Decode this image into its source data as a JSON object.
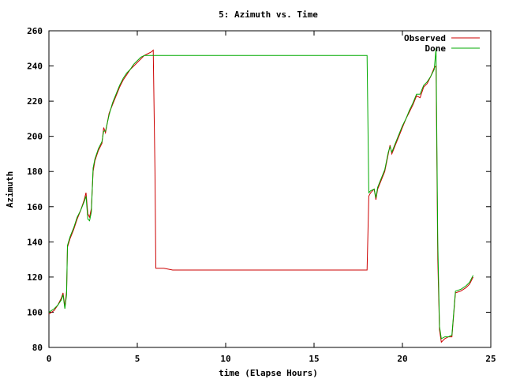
{
  "chart_data": {
    "type": "line",
    "title": "5: Azimuth vs. Time",
    "xlabel": "time (Elapse Hours)",
    "ylabel": "Azimuth",
    "xlim": [
      0,
      25
    ],
    "ylim": [
      80,
      260
    ],
    "xticks": [
      "0",
      "5",
      "10",
      "15",
      "20",
      "25"
    ],
    "yticks": [
      "80",
      "100",
      "120",
      "140",
      "160",
      "180",
      "200",
      "220",
      "240",
      "260"
    ],
    "grid": false,
    "legend_position": "top-right",
    "series": [
      {
        "name": "Observed",
        "color": "#cc0000",
        "points": [
          [
            0.0,
            99
          ],
          [
            0.3,
            101
          ],
          [
            0.5,
            104
          ],
          [
            0.7,
            108
          ],
          [
            0.8,
            111
          ],
          [
            0.9,
            103
          ],
          [
            1.0,
            112
          ],
          [
            1.05,
            137
          ],
          [
            1.2,
            142
          ],
          [
            1.4,
            147
          ],
          [
            1.6,
            153
          ],
          [
            1.8,
            158
          ],
          [
            2.0,
            164
          ],
          [
            2.1,
            168
          ],
          [
            2.2,
            156
          ],
          [
            2.3,
            154
          ],
          [
            2.4,
            159
          ],
          [
            2.5,
            180
          ],
          [
            2.6,
            186
          ],
          [
            2.8,
            192
          ],
          [
            3.0,
            196
          ],
          [
            3.1,
            205
          ],
          [
            3.2,
            202
          ],
          [
            3.4,
            213
          ],
          [
            3.6,
            218
          ],
          [
            3.8,
            223
          ],
          [
            4.0,
            228
          ],
          [
            4.2,
            232
          ],
          [
            4.4,
            235
          ],
          [
            4.6,
            238
          ],
          [
            4.8,
            240
          ],
          [
            5.0,
            242
          ],
          [
            5.2,
            244
          ],
          [
            5.4,
            246
          ],
          [
            5.6,
            247
          ],
          [
            5.8,
            248
          ],
          [
            5.9,
            249
          ],
          [
            6.0,
            180
          ],
          [
            6.05,
            125
          ],
          [
            6.5,
            125
          ],
          [
            7.0,
            124
          ],
          [
            17.0,
            124
          ],
          [
            18.0,
            124
          ],
          [
            18.1,
            166
          ],
          [
            18.2,
            168
          ],
          [
            18.4,
            170
          ],
          [
            18.5,
            164
          ],
          [
            18.6,
            170
          ],
          [
            18.8,
            175
          ],
          [
            19.0,
            180
          ],
          [
            19.2,
            190
          ],
          [
            19.3,
            195
          ],
          [
            19.4,
            190
          ],
          [
            19.6,
            195
          ],
          [
            19.8,
            200
          ],
          [
            20.0,
            205
          ],
          [
            20.2,
            210
          ],
          [
            20.4,
            214
          ],
          [
            20.6,
            218
          ],
          [
            20.8,
            223
          ],
          [
            21.0,
            222
          ],
          [
            21.2,
            228
          ],
          [
            21.4,
            230
          ],
          [
            21.6,
            234
          ],
          [
            21.8,
            239
          ],
          [
            21.9,
            240
          ],
          [
            22.0,
            130
          ],
          [
            22.1,
            90
          ],
          [
            22.2,
            83
          ],
          [
            22.4,
            85
          ],
          [
            22.6,
            86
          ],
          [
            22.8,
            86
          ],
          [
            23.0,
            111
          ],
          [
            23.3,
            112
          ],
          [
            23.6,
            114
          ],
          [
            23.8,
            116
          ],
          [
            24.0,
            120
          ]
        ]
      },
      {
        "name": "Done",
        "color": "#00aa00",
        "points": [
          [
            0.0,
            100
          ],
          [
            0.3,
            102
          ],
          [
            0.5,
            104
          ],
          [
            0.7,
            107
          ],
          [
            0.8,
            110
          ],
          [
            0.9,
            102
          ],
          [
            1.0,
            110
          ],
          [
            1.05,
            138
          ],
          [
            1.2,
            143
          ],
          [
            1.4,
            148
          ],
          [
            1.6,
            154
          ],
          [
            1.8,
            158
          ],
          [
            2.0,
            163
          ],
          [
            2.1,
            166
          ],
          [
            2.2,
            153
          ],
          [
            2.3,
            152
          ],
          [
            2.4,
            157
          ],
          [
            2.5,
            182
          ],
          [
            2.6,
            187
          ],
          [
            2.8,
            193
          ],
          [
            3.0,
            197
          ],
          [
            3.1,
            203
          ],
          [
            3.2,
            203
          ],
          [
            3.4,
            212
          ],
          [
            3.6,
            219
          ],
          [
            3.8,
            224
          ],
          [
            4.0,
            229
          ],
          [
            4.2,
            233
          ],
          [
            4.4,
            236
          ],
          [
            4.6,
            238
          ],
          [
            4.8,
            241
          ],
          [
            5.0,
            243
          ],
          [
            5.2,
            245
          ],
          [
            5.4,
            246
          ],
          [
            5.6,
            246
          ],
          [
            5.8,
            246
          ],
          [
            6.0,
            246
          ],
          [
            10.0,
            246
          ],
          [
            15.0,
            246
          ],
          [
            18.0,
            246
          ],
          [
            18.1,
            168
          ],
          [
            18.2,
            169
          ],
          [
            18.4,
            170
          ],
          [
            18.5,
            165
          ],
          [
            18.6,
            171
          ],
          [
            18.8,
            176
          ],
          [
            19.0,
            181
          ],
          [
            19.2,
            191
          ],
          [
            19.3,
            194
          ],
          [
            19.4,
            191
          ],
          [
            19.6,
            196
          ],
          [
            19.8,
            201
          ],
          [
            20.0,
            206
          ],
          [
            20.2,
            210
          ],
          [
            20.4,
            215
          ],
          [
            20.6,
            219
          ],
          [
            20.8,
            224
          ],
          [
            21.0,
            224
          ],
          [
            21.2,
            229
          ],
          [
            21.4,
            231
          ],
          [
            21.6,
            234
          ],
          [
            21.8,
            238
          ],
          [
            21.9,
            250
          ],
          [
            22.0,
            140
          ],
          [
            22.1,
            92
          ],
          [
            22.2,
            85
          ],
          [
            22.4,
            86
          ],
          [
            22.6,
            86
          ],
          [
            22.8,
            87
          ],
          [
            23.0,
            112
          ],
          [
            23.3,
            113
          ],
          [
            23.6,
            115
          ],
          [
            23.8,
            117
          ],
          [
            24.0,
            121
          ]
        ]
      }
    ]
  }
}
